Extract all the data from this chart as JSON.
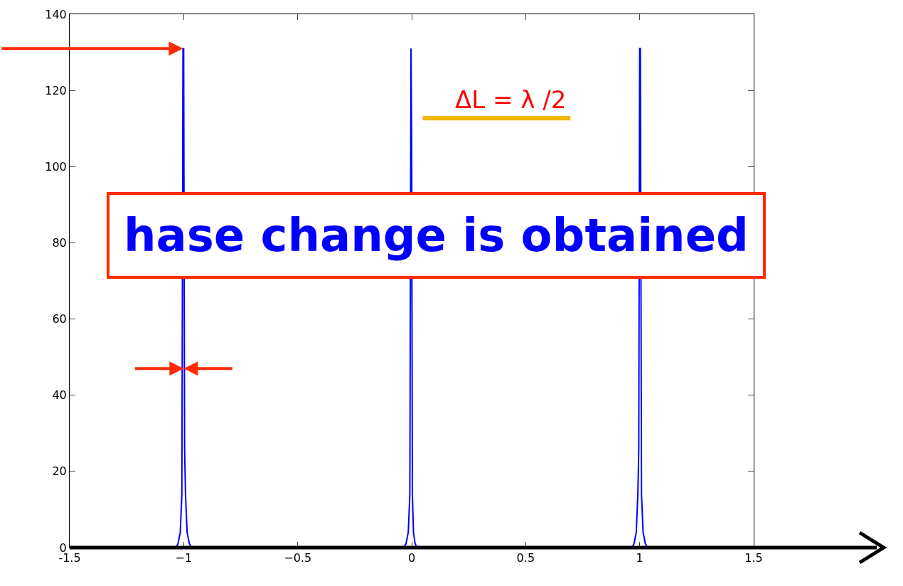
{
  "chart_data": {
    "type": "line",
    "x": [
      -1.5,
      -1.035,
      -1.025,
      -1.015,
      -1.008,
      -1.003,
      -1.0,
      -0.996,
      -0.992,
      -0.985,
      -0.975,
      -0.965,
      -0.035,
      -0.025,
      -0.015,
      -0.008,
      -0.003,
      0.0,
      0.003,
      0.008,
      0.015,
      0.025,
      0.035,
      0.965,
      0.975,
      0.985,
      0.992,
      0.996,
      1.0,
      1.003,
      1.008,
      1.015,
      1.025,
      1.035,
      1.5
    ],
    "series": [
      {
        "color": "#0000ff",
        "values": [
          0,
          0,
          1,
          4,
          14,
          131,
          131,
          26,
          14,
          4,
          1,
          0,
          0,
          1,
          4,
          14,
          131,
          104,
          14,
          4,
          1,
          0,
          0,
          0,
          1,
          4,
          14,
          26,
          131,
          131,
          14,
          4,
          1,
          0,
          0
        ]
      }
    ],
    "xlim": [
      -1.5,
      1.5
    ],
    "xticks": [
      -1.5,
      {
        "value": -1,
        "label": "−1"
      },
      {
        "value": -0.5,
        "label": "−0.5"
      },
      0,
      0.5,
      1,
      1.5
    ],
    "ylim": [
      0,
      140
    ],
    "yticks": [
      0,
      20,
      40,
      60,
      80,
      100,
      120,
      140
    ],
    "marker": "none",
    "line_style": "solid",
    "annotations": [
      "ΔL = λ /2",
      "hase change is obtained"
    ]
  }
}
